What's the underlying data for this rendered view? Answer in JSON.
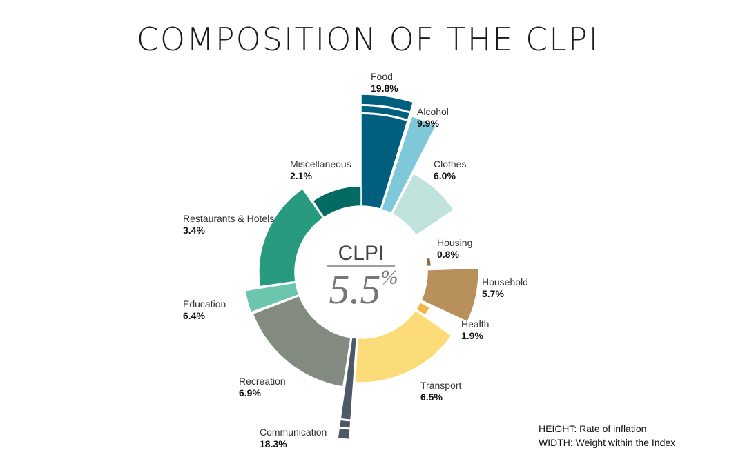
{
  "title": "COMPOSITION OF THE CLPI",
  "center": {
    "label": "CLPI",
    "value": "5.5",
    "unit": "%"
  },
  "legend": {
    "height_key": "HEIGHT:",
    "height_text": " Rate of inflation",
    "width_key": "WIDTH:",
    "width_text": " Weight within the Index"
  },
  "chart_data": {
    "type": "polar-area",
    "title": "COMPOSITION OF THE CLPI",
    "center_value": "5.5%",
    "encoding": {
      "height": "Rate of inflation",
      "width": "Weight within the Index"
    },
    "categories": [
      {
        "name": "Food",
        "value": "19.8%",
        "color": "#005f7f",
        "broken": true
      },
      {
        "name": "Alcohol",
        "value": "9.9%",
        "color": "#7ec8d9"
      },
      {
        "name": "Clothes",
        "value": "6.0%",
        "color": "#bfe3dc"
      },
      {
        "name": "Housing",
        "value": "0.8%",
        "color": "#8c7140"
      },
      {
        "name": "Household",
        "value": "5.7%",
        "color": "#b8905c"
      },
      {
        "name": "Health",
        "value": "1.9%",
        "color": "#f2b84b"
      },
      {
        "name": "Transport",
        "value": "6.5%",
        "color": "#fbdc78"
      },
      {
        "name": "Communication",
        "value": "18.3%",
        "color": "#4d5a66",
        "broken": true
      },
      {
        "name": "Recreation",
        "value": "6.9%",
        "color": "#838b80"
      },
      {
        "name": "Education",
        "value": "6.4%",
        "color": "#6cc5ad"
      },
      {
        "name": "Restaurants & Hotels",
        "value": "3.4%",
        "color": "#279a80"
      },
      {
        "name": "Miscellaneous",
        "value": "2.1%",
        "color": "#046b63"
      }
    ]
  }
}
